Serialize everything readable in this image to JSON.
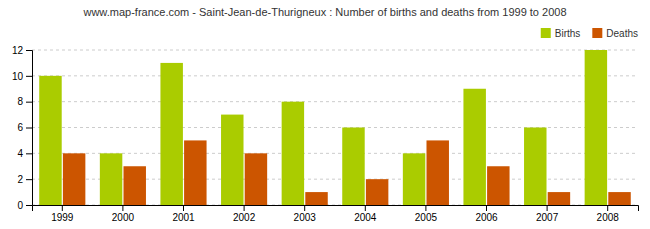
{
  "chart_data": {
    "type": "bar",
    "title": "www.map-france.com - Saint-Jean-de-Thurigneux : Number of births and deaths from 1999 to 2008",
    "categories": [
      "1999",
      "2000",
      "2001",
      "2002",
      "2003",
      "2004",
      "2005",
      "2006",
      "2007",
      "2008"
    ],
    "series": [
      {
        "name": "Births",
        "color": "#aacc00",
        "values": [
          10,
          4,
          11,
          7,
          8,
          6,
          4,
          9,
          6,
          12
        ]
      },
      {
        "name": "Deaths",
        "color": "#cc5500",
        "values": [
          4,
          3,
          5,
          4,
          1,
          2,
          5,
          3,
          1,
          1
        ]
      }
    ],
    "ylim": [
      0,
      12
    ],
    "yticks": [
      0,
      2,
      4,
      6,
      8,
      10,
      12
    ],
    "grid": true,
    "legend": "upper right"
  }
}
